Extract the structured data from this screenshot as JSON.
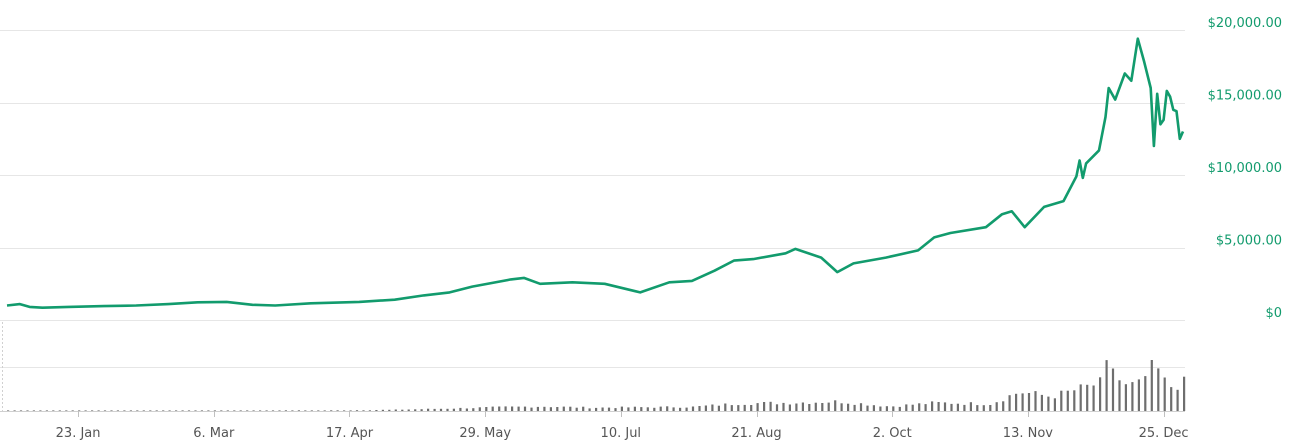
{
  "colors": {
    "line": "#129b6d",
    "volume": "#6e6e6e",
    "grid": "#e6e6e6",
    "y_label": "#129b6d",
    "x_label": "#555555"
  },
  "chart_data": {
    "type": "line",
    "title": "",
    "xlabel": "",
    "ylabel": "",
    "grid": true,
    "legend": "none",
    "ylim": [
      0,
      20000
    ],
    "y_ticks": [
      "$0",
      "$5,000.00",
      "$10,000.00",
      "$15,000.00",
      "$20,000.00"
    ],
    "x_ticks": [
      "23. Jan",
      "6. Mar",
      "17. Apr",
      "29. May",
      "10. Jul",
      "21. Aug",
      "2. Oct",
      "13. Nov",
      "25. Dec"
    ],
    "x_tick_dates": [
      "2017-01-23",
      "2017-03-06",
      "2017-04-17",
      "2017-05-29",
      "2017-07-10",
      "2017-08-21",
      "2017-10-02",
      "2017-11-13",
      "2017-12-25"
    ],
    "x_range": [
      "2017-01-01",
      "2017-12-31"
    ],
    "series": [
      {
        "values": [
          [
            "2017-01-01",
            1000
          ],
          [
            "2017-01-05",
            1100
          ],
          [
            "2017-01-08",
            900
          ],
          [
            "2017-01-12",
            850
          ],
          [
            "2017-01-20",
            900
          ],
          [
            "2017-01-31",
            960
          ],
          [
            "2017-02-10",
            1000
          ],
          [
            "2017-02-20",
            1100
          ],
          [
            "2017-03-01",
            1220
          ],
          [
            "2017-03-10",
            1250
          ],
          [
            "2017-03-18",
            1050
          ],
          [
            "2017-03-25",
            1000
          ],
          [
            "2017-04-05",
            1150
          ],
          [
            "2017-04-20",
            1250
          ],
          [
            "2017-05-01",
            1400
          ],
          [
            "2017-05-10",
            1700
          ],
          [
            "2017-05-18",
            1900
          ],
          [
            "2017-05-25",
            2300
          ],
          [
            "2017-06-06",
            2800
          ],
          [
            "2017-06-10",
            2900
          ],
          [
            "2017-06-15",
            2500
          ],
          [
            "2017-06-25",
            2600
          ],
          [
            "2017-07-05",
            2500
          ],
          [
            "2017-07-16",
            1900
          ],
          [
            "2017-07-25",
            2600
          ],
          [
            "2017-08-01",
            2700
          ],
          [
            "2017-08-08",
            3400
          ],
          [
            "2017-08-14",
            4100
          ],
          [
            "2017-08-20",
            4200
          ],
          [
            "2017-08-30",
            4600
          ],
          [
            "2017-09-02",
            4900
          ],
          [
            "2017-09-10",
            4300
          ],
          [
            "2017-09-15",
            3300
          ],
          [
            "2017-09-20",
            3900
          ],
          [
            "2017-09-30",
            4300
          ],
          [
            "2017-10-10",
            4800
          ],
          [
            "2017-10-15",
            5700
          ],
          [
            "2017-10-20",
            6000
          ],
          [
            "2017-10-31",
            6400
          ],
          [
            "2017-11-05",
            7300
          ],
          [
            "2017-11-08",
            7500
          ],
          [
            "2017-11-12",
            6400
          ],
          [
            "2017-11-18",
            7800
          ],
          [
            "2017-11-24",
            8200
          ],
          [
            "2017-11-28",
            9900
          ],
          [
            "2017-11-29",
            11000
          ],
          [
            "2017-11-30",
            9800
          ],
          [
            "2017-12-01",
            10800
          ],
          [
            "2017-12-05",
            11700
          ],
          [
            "2017-12-07",
            14000
          ],
          [
            "2017-12-08",
            16000
          ],
          [
            "2017-12-10",
            15200
          ],
          [
            "2017-12-13",
            17000
          ],
          [
            "2017-12-15",
            16500
          ],
          [
            "2017-12-17",
            19400
          ],
          [
            "2017-12-19",
            17800
          ],
          [
            "2017-12-21",
            16000
          ],
          [
            "2017-12-22",
            12000
          ],
          [
            "2017-12-23",
            15600
          ],
          [
            "2017-12-24",
            13500
          ],
          [
            "2017-12-25",
            13800
          ],
          [
            "2017-12-26",
            15800
          ],
          [
            "2017-12-27",
            15400
          ],
          [
            "2017-12-28",
            14500
          ],
          [
            "2017-12-29",
            14400
          ],
          [
            "2017-12-30",
            12500
          ],
          [
            "2017-12-31",
            13000
          ]
        ]
      }
    ],
    "volume": {
      "ylim": [
        0,
        12000000000
      ],
      "values": [
        [
          "2017-01-01",
          100000000
        ],
        [
          "2017-02-15",
          110000000
        ],
        [
          "2017-03-15",
          120000000
        ],
        [
          "2017-04-15",
          150000000
        ],
        [
          "2017-05-01",
          300000000
        ],
        [
          "2017-05-15",
          550000000
        ],
        [
          "2017-06-01",
          900000000
        ],
        [
          "2017-06-15",
          1100000000
        ],
        [
          "2017-07-01",
          800000000
        ],
        [
          "2017-07-15",
          900000000
        ],
        [
          "2017-08-01",
          1000000000
        ],
        [
          "2017-08-15",
          1800000000
        ],
        [
          "2017-09-01",
          2000000000
        ],
        [
          "2017-09-15",
          2300000000
        ],
        [
          "2017-10-01",
          1100000000
        ],
        [
          "2017-10-15",
          2000000000
        ],
        [
          "2017-11-01",
          1700000000
        ],
        [
          "2017-11-10",
          4600000000
        ],
        [
          "2017-11-20",
          3500000000
        ],
        [
          "2017-11-28",
          5200000000
        ],
        [
          "2017-12-05",
          6700000000
        ],
        [
          "2017-12-08",
          12300000000
        ],
        [
          "2017-12-12",
          5800000000
        ],
        [
          "2017-12-17",
          6400000000
        ],
        [
          "2017-12-22",
          11000000000
        ],
        [
          "2017-12-26",
          5700000000
        ],
        [
          "2017-12-31",
          6800000000
        ]
      ]
    }
  }
}
